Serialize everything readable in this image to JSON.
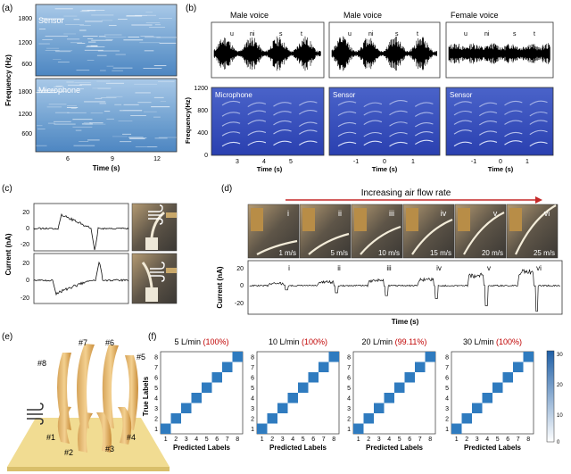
{
  "panel_labels": {
    "a": "(a)",
    "b": "(b)",
    "c": "(c)",
    "d": "(d)",
    "e": "(e)",
    "f": "(f)"
  },
  "panel_a": {
    "ylabel": "Frequency (Hz)",
    "xlabel": "Time (s)",
    "top_label": "Sensor",
    "bottom_label": "Microphone",
    "top_yticks": [
      "1800",
      "1200",
      "600"
    ],
    "bottom_yticks": [
      "1800",
      "1200",
      "600"
    ],
    "xticks": [
      "6",
      "9",
      "12"
    ]
  },
  "panel_b": {
    "voices": [
      "Male voice",
      "Male voice",
      "Female voice"
    ],
    "syllables": [
      "u",
      "ni",
      "s",
      "t"
    ],
    "ylabel": "Frequency(Hz)",
    "yticks": [
      "1200",
      "800",
      "400",
      "0"
    ],
    "spectrogram_labels": [
      "Microphone",
      "Sensor",
      "Sensor"
    ],
    "xticks_1": [
      "3",
      "4",
      "5"
    ],
    "xticks_2": [
      "-1",
      "0",
      "1"
    ],
    "xticks_3": [
      "-1",
      "0",
      "1"
    ],
    "xlabel": "Time (s)"
  },
  "panel_c": {
    "ylabel": "Current (nA)",
    "top_yticks": [
      "20",
      "0",
      "-20"
    ],
    "bottom_yticks": [
      "20",
      "0",
      "-20"
    ]
  },
  "panel_d": {
    "header": "Increasing air flow rate",
    "photos": [
      {
        "roman": "i",
        "speed": "1 m/s"
      },
      {
        "roman": "ii",
        "speed": "5 m/s"
      },
      {
        "roman": "iii",
        "speed": "10 m/s"
      },
      {
        "roman": "iv",
        "speed": "15 m/s"
      },
      {
        "roman": "v",
        "speed": "20 m/s"
      },
      {
        "roman": "vi",
        "speed": "25 m/s"
      }
    ],
    "trace_labels": [
      "i",
      "ii",
      "iii",
      "iv",
      "v",
      "vi"
    ],
    "ylabel": "Current (nA)",
    "yticks": [
      "20",
      "0",
      "-20"
    ],
    "xlabel": "Time (s)"
  },
  "panel_e": {
    "labels": [
      "#7",
      "#6",
      "#8",
      "#5",
      "#1",
      "#2",
      "#3",
      "#4"
    ]
  },
  "panel_f": {
    "ylabel": "True Labels",
    "xlabel": "Predicted Labels",
    "matrices": [
      {
        "flow": "5 L/min",
        "acc": "(100%)"
      },
      {
        "flow": "10 L/min",
        "acc": "(100%)"
      },
      {
        "flow": "20 L/min",
        "acc": "(99.11%)"
      },
      {
        "flow": "30 L/min",
        "acc": "(100%)"
      }
    ],
    "ticks": [
      "1",
      "2",
      "3",
      "4",
      "5",
      "6",
      "7",
      "8"
    ],
    "colorbar_ticks": [
      "30",
      "20",
      "10",
      "0"
    ],
    "accent": "#c00000",
    "cell_color": "#2f7bbf"
  },
  "chart_data": [
    {
      "type": "heatmap",
      "title": "5 L/min (100%)",
      "xlabel": "Predicted Labels",
      "ylabel": "True Labels",
      "categories": [
        "1",
        "2",
        "3",
        "4",
        "5",
        "6",
        "7",
        "8"
      ],
      "diagonal_values": [
        30,
        30,
        30,
        30,
        30,
        30,
        30,
        30
      ],
      "colorbar_range": [
        0,
        30
      ]
    },
    {
      "type": "heatmap",
      "title": "10 L/min (100%)",
      "xlabel": "Predicted Labels",
      "ylabel": "True Labels",
      "categories": [
        "1",
        "2",
        "3",
        "4",
        "5",
        "6",
        "7",
        "8"
      ],
      "diagonal_values": [
        30,
        30,
        30,
        30,
        30,
        30,
        30,
        30
      ],
      "colorbar_range": [
        0,
        30
      ]
    },
    {
      "type": "heatmap",
      "title": "20 L/min (99.11%)",
      "xlabel": "Predicted Labels",
      "ylabel": "True Labels",
      "categories": [
        "1",
        "2",
        "3",
        "4",
        "5",
        "6",
        "7",
        "8"
      ],
      "diagonal_values": [
        30,
        30,
        30,
        30,
        30,
        30,
        30,
        30
      ],
      "colorbar_range": [
        0,
        30
      ]
    },
    {
      "type": "heatmap",
      "title": "30 L/min (100%)",
      "xlabel": "Predicted Labels",
      "ylabel": "True Labels",
      "categories": [
        "1",
        "2",
        "3",
        "4",
        "5",
        "6",
        "7",
        "8"
      ],
      "diagonal_values": [
        30,
        30,
        30,
        30,
        30,
        30,
        30,
        30
      ],
      "colorbar_range": [
        0,
        30
      ]
    }
  ]
}
